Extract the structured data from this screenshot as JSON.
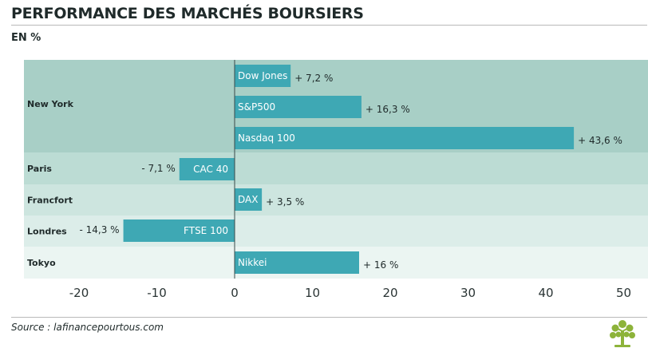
{
  "header": {
    "title": "PERFORMANCE DES MARCHÉS BOURSIERS",
    "subtitle": "EN %"
  },
  "footer": {
    "source": "Source : lafinancepourtous.com",
    "logo_icon": "tree-logo-icon"
  },
  "colors": {
    "bar": "#3ea8b4",
    "row_new_york": "#a8cfc6",
    "row_paris": "#bcdcd4",
    "row_francfort": "#cde5df",
    "row_londres": "#dcede9",
    "row_tokyo": "#ebf5f2",
    "logo": "#8db33a"
  },
  "chart_data": {
    "type": "bar",
    "orientation": "horizontal",
    "xlim": [
      -20,
      50
    ],
    "x_ticks": [
      -20,
      -10,
      0,
      10,
      20,
      30,
      40,
      50
    ],
    "x_tick_labels": [
      "-20",
      "-10",
      "0",
      "10",
      "20",
      "30",
      "40",
      "50"
    ],
    "grid": false,
    "groups": [
      {
        "label": "New York",
        "bars": [
          {
            "name": "Dow Jones",
            "value": 7.2,
            "label": "+ 7,2 %"
          },
          {
            "name": "S&P500",
            "value": 16.3,
            "label": "+ 16,3 %"
          },
          {
            "name": "Nasdaq 100",
            "value": 43.6,
            "label": "+ 43,6 %"
          }
        ]
      },
      {
        "label": "Paris",
        "bars": [
          {
            "name": "CAC 40",
            "value": -7.1,
            "label": "- 7,1 %"
          }
        ]
      },
      {
        "label": "Francfort",
        "bars": [
          {
            "name": "DAX",
            "value": 3.5,
            "label": "+ 3,5 %"
          }
        ]
      },
      {
        "label": "Londres",
        "bars": [
          {
            "name": "FTSE 100",
            "value": -14.3,
            "label": "- 14,3 %"
          }
        ]
      },
      {
        "label": "Tokyo",
        "bars": [
          {
            "name": "Nikkei",
            "value": 16,
            "label": "+ 16 %"
          }
        ]
      }
    ]
  }
}
